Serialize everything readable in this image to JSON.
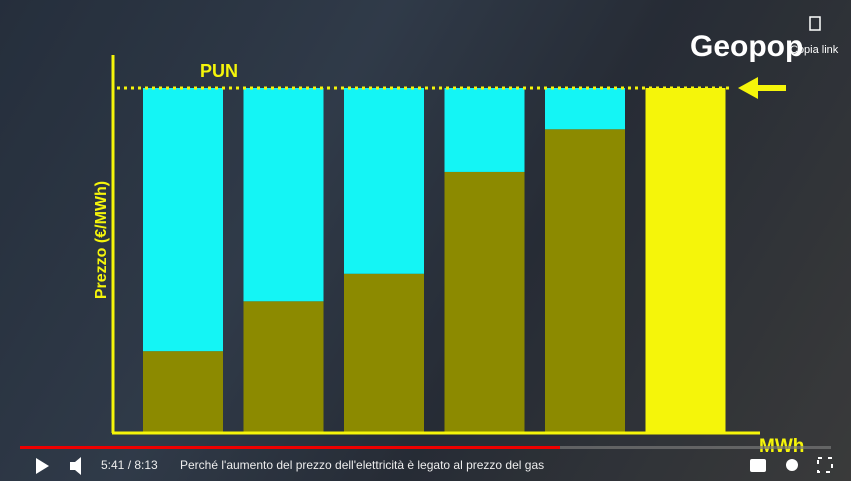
{
  "chart_data": {
    "type": "bar",
    "stacked": true,
    "y_label": "Prezzo (€/MWh)",
    "x_label": "MWh",
    "reference_label": "PUN",
    "categories": [
      null,
      null,
      null,
      null,
      null,
      null
    ],
    "series": [
      {
        "color": "#8c8a00",
        "values": [
          23.5,
          38,
          46,
          75.6,
          88,
          null
        ]
      },
      {
        "color": "#14f5f5",
        "values": [
          76.5,
          62,
          54,
          24.4,
          12,
          null
        ]
      },
      {
        "color": "#f5f50a",
        "values": [
          null,
          null,
          null,
          null,
          null,
          100
        ]
      }
    ],
    "ylim": [
      0,
      100
    ]
  },
  "overlay": {
    "logo": "Geopop",
    "copy_link": "Copia link"
  },
  "player": {
    "time": "5:41 / 8:13",
    "title": "Perché l'aumento del prezzo dell'elettricità è legato al prezzo del gas"
  }
}
